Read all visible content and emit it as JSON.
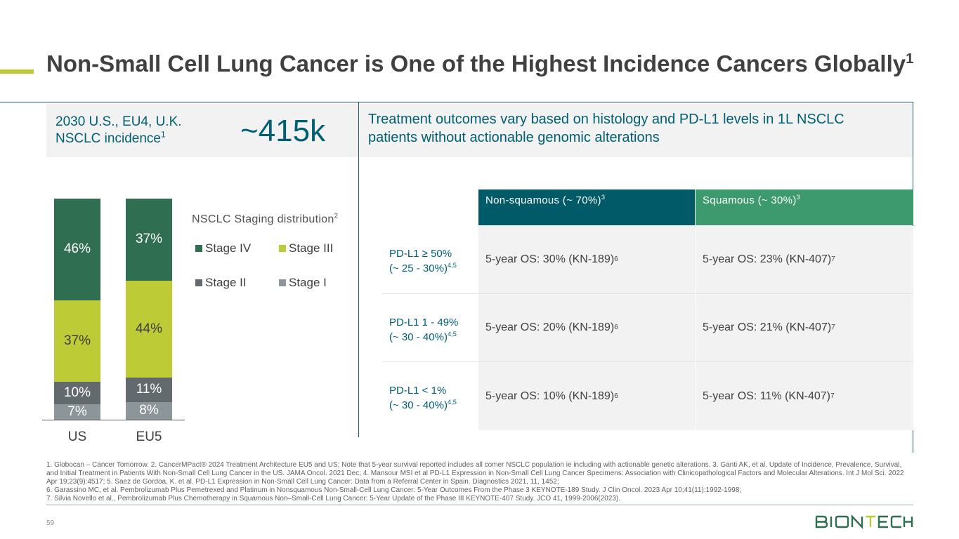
{
  "title": {
    "text": "Non-Small Cell Lung Cancer is One of the Highest Incidence Cancers Globally",
    "sup": "1"
  },
  "incidence": {
    "label": "2030 U.S., EU4, U.K. NSCLC incidence",
    "label_sup": "1",
    "value": "~415k"
  },
  "outcomes_heading": "Treatment outcomes vary based on histology and PD-L1 levels in 1L NSCLC patients without actionable genomic alterations",
  "chart_data": {
    "type": "bar",
    "stacked": true,
    "categories": [
      "US",
      "EU5"
    ],
    "legend_title": "NSCLC Staging distribution",
    "legend_title_sup": "2",
    "legend_placement": "right",
    "series": [
      {
        "name": "Stage I",
        "values": [
          7,
          8
        ],
        "labels": [
          "7%",
          "8%"
        ],
        "color": "#8c9599"
      },
      {
        "name": "Stage II",
        "values": [
          10,
          11
        ],
        "labels": [
          "10%",
          "11%"
        ],
        "color": "#636a6e"
      },
      {
        "name": "Stage III",
        "values": [
          37,
          44
        ],
        "labels": [
          "37%",
          "44%"
        ],
        "color": "#bdcb36"
      },
      {
        "name": "Stage IV",
        "values": [
          46,
          37
        ],
        "labels": [
          "46%",
          "37%"
        ],
        "color": "#2f6e50"
      }
    ],
    "ylim": [
      0,
      100
    ],
    "grid": false
  },
  "table": {
    "headers": [
      {
        "text": "Non-squamous (~ 70%)",
        "sup": "3",
        "color": "#005a68"
      },
      {
        "text": "Squamous (~ 30%)",
        "sup": "3",
        "color": "#3d9a6f"
      }
    ],
    "rows": [
      {
        "label_line1": "PD-L1 ≥ 50%",
        "label_line2": "(~ 25 - 30%)",
        "label_sup": "4,5",
        "nonsq": "5-year OS: 30% (KN-189)",
        "nonsq_sup": "6",
        "sq": "5-year OS: 23% (KN-407)",
        "sq_sup": "7"
      },
      {
        "label_line1": "PD-L1 1 - 49%",
        "label_line2": "(~ 30 - 40%)",
        "label_sup": "4,5",
        "nonsq": "5-year OS: 20% (KN-189)",
        "nonsq_sup": "6",
        "sq": "5-year OS: 21% (KN-407)",
        "sq_sup": "7"
      },
      {
        "label_line1": "PD-L1 < 1%",
        "label_line2": "(~ 30 - 40%)",
        "label_sup": "4,5",
        "nonsq": "5-year OS: 10% (KN-189)",
        "nonsq_sup": "6",
        "sq": "5-year OS: 11% (KN-407)",
        "sq_sup": "7"
      }
    ]
  },
  "footnotes": [
    "1. Globocan – Cancer Tomorrow.  2. CancerMPact® 2024 Treatment Architecture EU5 and US; Note that 5-year survival reported includes all comer NSCLC population ie including with actionable genetic alterations. 3. Ganti AK, et al. Update of Incidence, Prevalence, Survival, and Initial Treatment in Patients With Non-Small Cell Lung Cancer in the US. JAMA Oncol. 2021 Dec; 4. Mansour MSI et al  PD-L1 Expression in Non-Small Cell Lung Cancer Specimens: Association with Clinicopathological Factors and Molecular Alterations. Int J Mol Sci. 2022 Apr 19;23(9):4517; 5. Saez de Gordoa, K. et al. PD-L1 Expression in Non-Small Cell Lung Cancer: Data from a Referral Center in Spain. Diagnostics 2021, 11, 1452;",
    "6. Garassino MC, et al. Pembrolizumab Plus Pemetrexed and Platinum in Nonsquamous Non-Small-Cell Lung Cancer: 5-Year Outcomes From the Phase 3 KEYNOTE-189 Study. J Clin Oncol. 2023 Apr 10;41(11):1992-1998;",
    "7. Silvia Novello et al., Pembrolizumab Plus Chemotherapy in Squamous Non–Small-Cell Lung Cancer: 5-Year Update of the Phase III KEYNOTE-407 Study. JCO 41, 1999-2006(2023)."
  ],
  "page_number": "59",
  "logo_text": "BIONTECH",
  "accent_color": "#bdcb36",
  "brand_color": "#005f73"
}
